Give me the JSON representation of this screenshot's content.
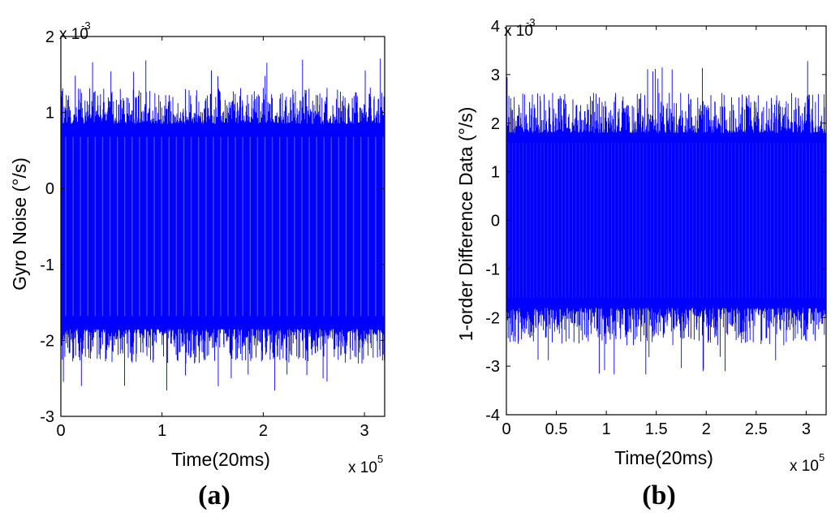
{
  "figure": {
    "panels": [
      "(a)",
      "(b)"
    ],
    "line_color": "#0000ff"
  },
  "chart_data": [
    {
      "type": "line",
      "panel": "(a)",
      "title": "",
      "xlabel": "Time(20ms)",
      "ylabel": "Gyro Noise (°/s)",
      "x_multiplier": "x 10",
      "x_multiplier_exp": "5",
      "y_multiplier": "x 10",
      "y_multiplier_exp": "-3",
      "xlim": [
        0,
        3.2
      ],
      "ylim": [
        -3,
        2
      ],
      "xticks": [
        0,
        1,
        2,
        3
      ],
      "xtick_labels": [
        "0",
        "1",
        "2",
        "3"
      ],
      "yticks": [
        -3,
        -2,
        -1,
        0,
        1,
        2
      ],
      "ytick_labels": [
        "-3",
        "-2",
        "-1",
        "0",
        "1",
        "2"
      ],
      "series": [
        {
          "name": "Gyro Noise",
          "x_range": [
            0,
            3.2
          ],
          "dense_band": [
            -1.85,
            0.85
          ],
          "spike_max": 1.72,
          "spike_min": -2.68,
          "mean": -0.5
        }
      ]
    },
    {
      "type": "line",
      "panel": "(b)",
      "title": "",
      "xlabel": "Time(20ms)",
      "ylabel": "1-order Difference Data (°/s)",
      "x_multiplier": "x 10",
      "x_multiplier_exp": "5",
      "y_multiplier": "x 10",
      "y_multiplier_exp": "-3",
      "xlim": [
        0,
        3.2
      ],
      "ylim": [
        -4,
        4
      ],
      "xticks": [
        0,
        0.5,
        1,
        1.5,
        2,
        2.5,
        3
      ],
      "xtick_labels": [
        "0",
        "0.5",
        "1",
        "1.5",
        "2",
        "2.5",
        "3"
      ],
      "yticks": [
        -4,
        -3,
        -2,
        -1,
        0,
        1,
        2,
        3,
        4
      ],
      "ytick_labels": [
        "-4",
        "-3",
        "-2",
        "-1",
        "0",
        "1",
        "2",
        "3",
        "4"
      ],
      "series": [
        {
          "name": "1-order Difference Data",
          "x_range": [
            0,
            3.2
          ],
          "dense_band": [
            -1.8,
            1.8
          ],
          "spike_max": 3.3,
          "spike_min": -3.2,
          "mean": 0
        }
      ]
    }
  ]
}
